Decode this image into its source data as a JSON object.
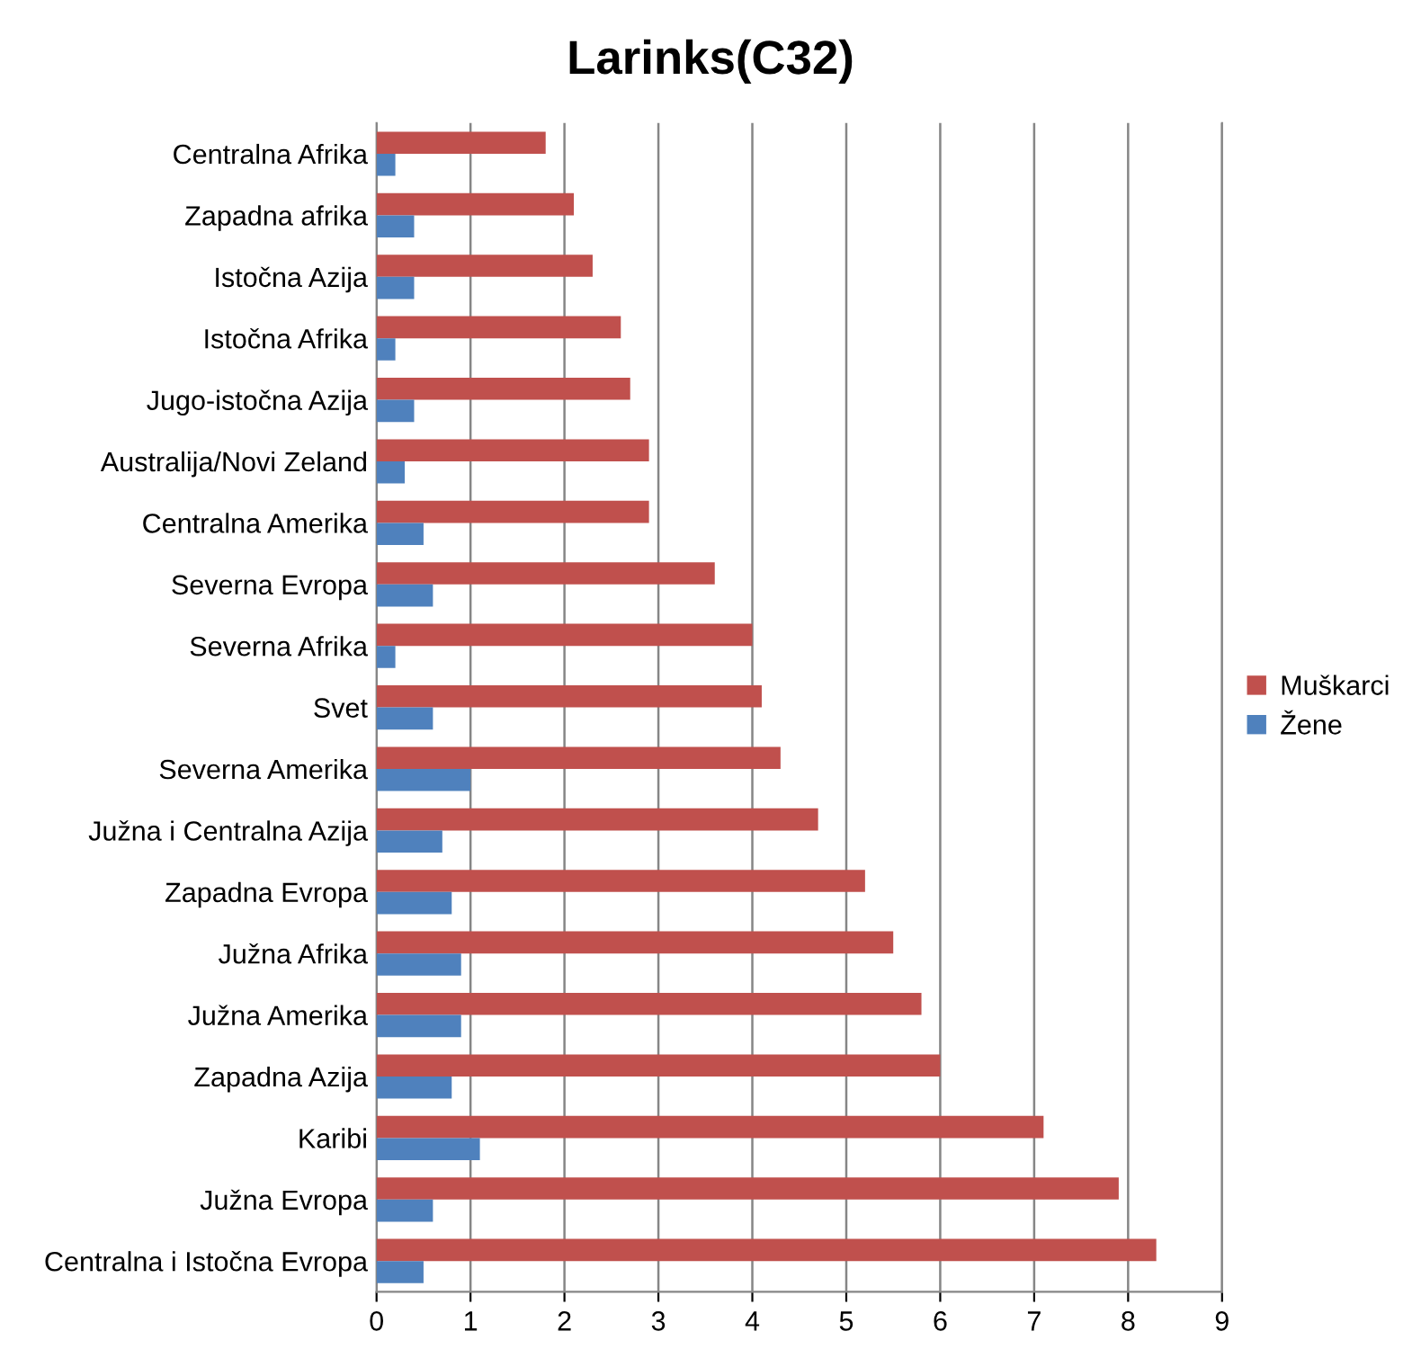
{
  "chart_data": {
    "type": "bar",
    "orientation": "horizontal",
    "title": "Larinks(C32)",
    "categories": [
      "Centralna Afrika",
      "Zapadna afrika",
      "Istočna Azija",
      "Istočna Afrika",
      "Jugo-istočna Azija",
      "Australija/Novi Zeland",
      "Centralna Amerika",
      "Severna Evropa",
      "Severna Afrika",
      "Svet",
      "Severna Amerika",
      "Južna i Centralna Azija",
      "Zapadna Evropa",
      "Južna Afrika",
      "Južna Amerika",
      "Zapadna Azija",
      "Karibi",
      "Južna Evropa",
      "Centralna i Istočna Evropa"
    ],
    "series": [
      {
        "name": "Muškarci",
        "color": "#c0504d",
        "values": [
          1.8,
          2.1,
          2.3,
          2.6,
          2.7,
          2.9,
          2.9,
          3.6,
          4.0,
          4.1,
          4.3,
          4.7,
          5.2,
          5.5,
          5.8,
          6.0,
          7.1,
          7.9,
          8.3
        ]
      },
      {
        "name": "Žene",
        "color": "#4f81bd",
        "values": [
          0.2,
          0.4,
          0.4,
          0.2,
          0.4,
          0.3,
          0.5,
          0.6,
          0.2,
          0.6,
          1.0,
          0.7,
          0.8,
          0.9,
          0.9,
          0.8,
          1.1,
          0.6,
          0.5
        ]
      }
    ],
    "xlim": [
      0,
      9
    ],
    "xticks": [
      0,
      1,
      2,
      3,
      4,
      5,
      6,
      7,
      8,
      9
    ],
    "grid": "x",
    "legend": "right"
  }
}
